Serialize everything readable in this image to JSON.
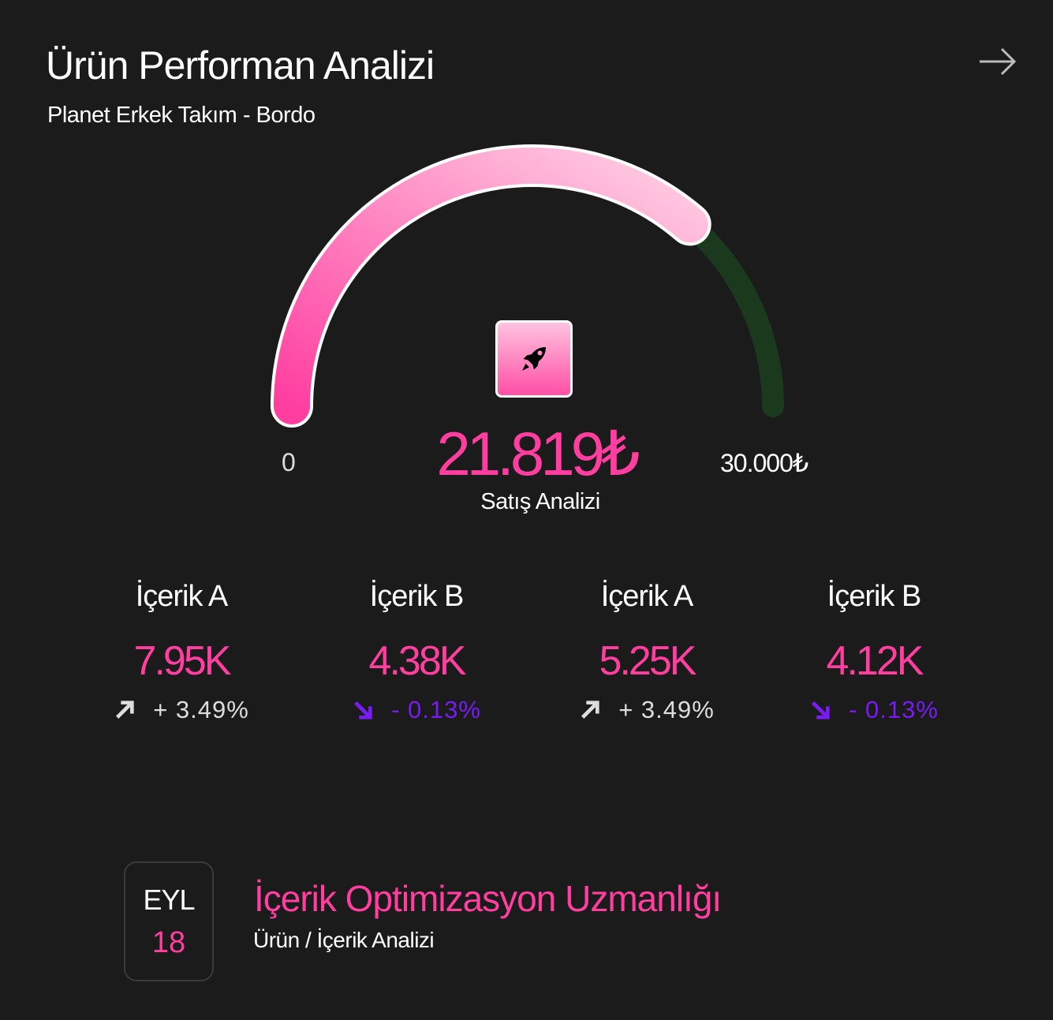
{
  "header": {
    "title": "Ürün Performan Analizi",
    "subtitle": "Planet Erkek Takım - Bordo",
    "next_icon": "arrow-right-icon"
  },
  "gauge": {
    "value": 21819,
    "max": 30000,
    "value_label": "21.819₺",
    "min_label": "0",
    "max_label": "30.000₺",
    "caption": "Satış Analizi",
    "icon": "rocket-icon",
    "colors": {
      "fill_start": "#ff3ea0",
      "fill_end": "#ffd0e4",
      "track": "#1b3a1d"
    }
  },
  "stats": [
    {
      "label": "İçerik A",
      "value": "7.95K",
      "change": "+ 3.49%",
      "trend": "up"
    },
    {
      "label": "İçerik B",
      "value": "4.38K",
      "change": "- 0.13%",
      "trend": "down"
    },
    {
      "label": "İçerik A",
      "value": "5.25K",
      "change": "+ 3.49%",
      "trend": "up"
    },
    {
      "label": "İçerik B",
      "value": "4.12K",
      "change": "- 0.13%",
      "trend": "down"
    }
  ],
  "event": {
    "month": "EYL",
    "day": "18",
    "title": "İçerik Optimizasyon Uzmanlığı",
    "subtitle": "Ürün / İçerik Analizi"
  },
  "colors": {
    "accent": "#ff3ea0",
    "down": "#7a1bf5",
    "background": "#1b1b1b"
  }
}
